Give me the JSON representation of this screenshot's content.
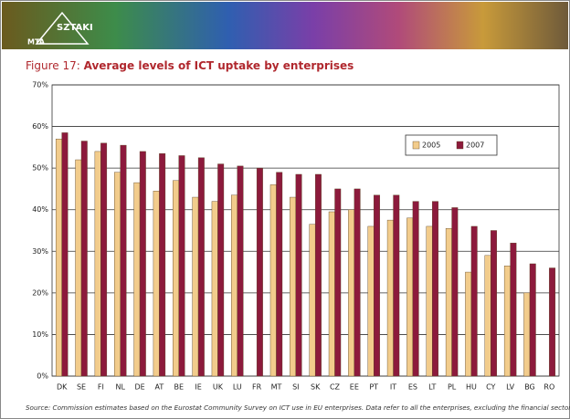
{
  "header": {
    "logo": [
      "MTA",
      "SZTAKI"
    ]
  },
  "chart_data": {
    "type": "bar",
    "figure_label": "Figure 17:",
    "title": "Average levels of ICT uptake by enterprises",
    "source": "Source: Commission estimates based on the Eurostat Community Survey on ICT use in EU enterprises. Data refer to all the enterprises, excluding the financial sector.",
    "categories": [
      "DK",
      "SE",
      "FI",
      "NL",
      "DE",
      "AT",
      "BE",
      "IE",
      "UK",
      "LU",
      "FR",
      "MT",
      "SI",
      "SK",
      "CZ",
      "EE",
      "PT",
      "IT",
      "ES",
      "LT",
      "PL",
      "HU",
      "CY",
      "LV",
      "BG",
      "RO"
    ],
    "series": [
      {
        "name": "2005",
        "color": "#f2cc8c",
        "values": [
          57,
          52,
          54,
          49,
          46.5,
          44.5,
          47,
          43,
          42,
          43.5,
          null,
          46,
          43,
          36.5,
          39.5,
          40,
          36,
          37.5,
          38,
          36,
          35.5,
          25,
          29,
          26.5,
          20,
          null
        ]
      },
      {
        "name": "2007",
        "color": "#8c1a3c",
        "values": [
          58.5,
          56.5,
          56,
          55.5,
          54,
          53.5,
          53,
          52.5,
          51,
          50.5,
          50,
          49,
          48.5,
          48.5,
          45,
          45,
          43.5,
          43.5,
          42,
          42,
          40.5,
          36,
          35,
          32,
          27,
          26
        ]
      }
    ],
    "ylim": [
      0,
      70
    ],
    "yticks": [
      {
        "value": 0,
        "label": "0%"
      },
      {
        "value": 10,
        "label": "10%"
      },
      {
        "value": 20,
        "label": "20%"
      },
      {
        "value": 30,
        "label": "30%"
      },
      {
        "value": 40,
        "label": "40%"
      },
      {
        "value": 50,
        "label": "50%"
      },
      {
        "value": 60,
        "label": "60%"
      },
      {
        "value": 70,
        "label": "70%"
      }
    ],
    "grid": true,
    "legend": "upper right"
  }
}
